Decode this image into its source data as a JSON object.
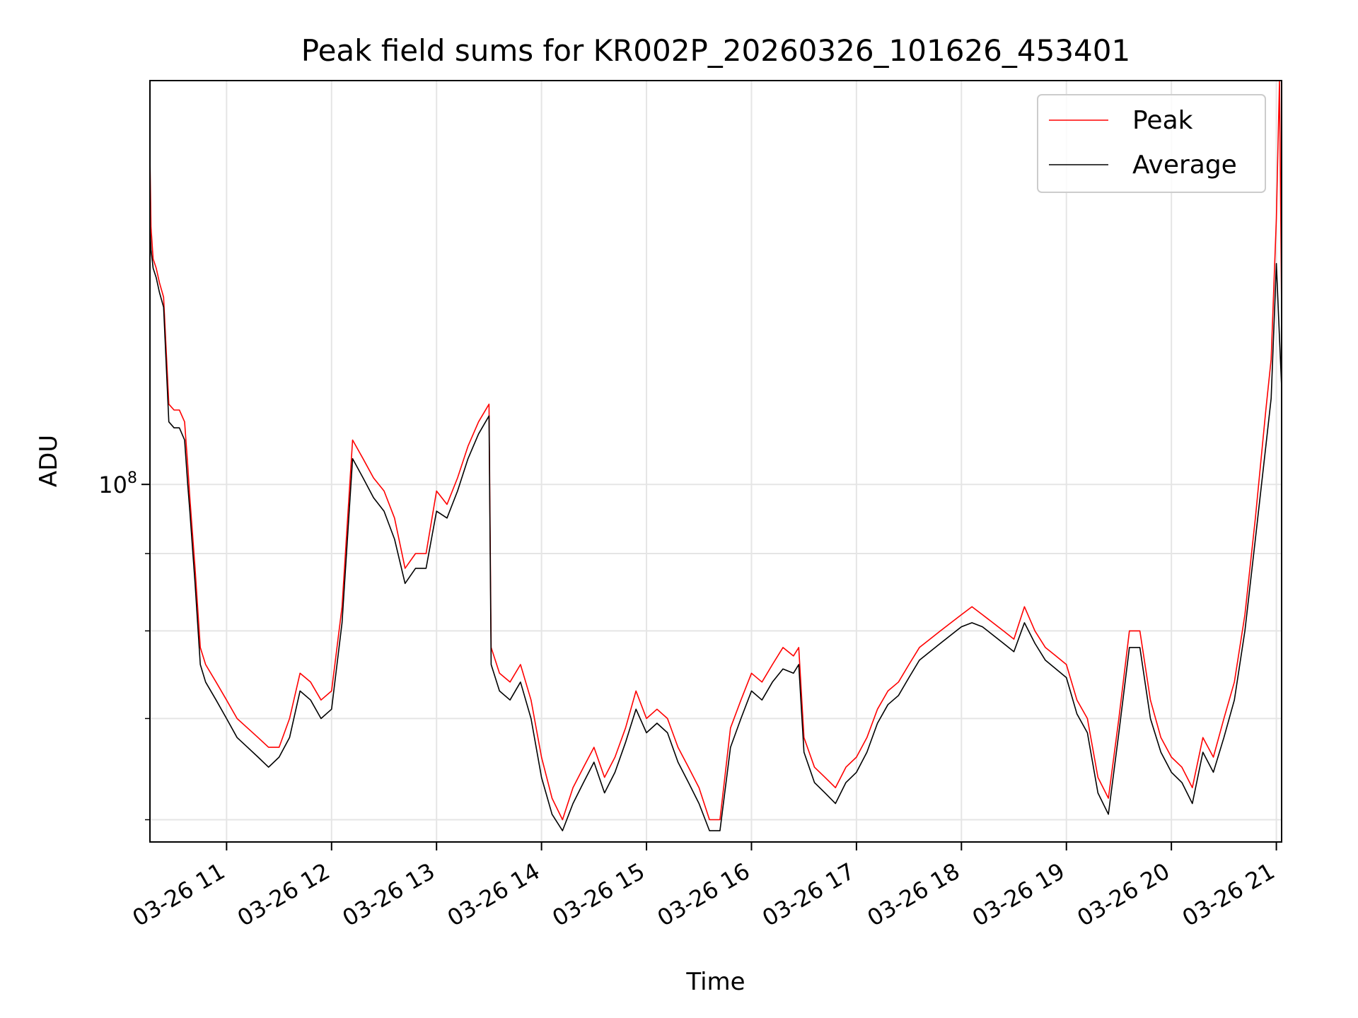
{
  "chart_data": {
    "type": "line",
    "title": "Peak field sums for KR002P_20260326_101626_453401",
    "xlabel": "Time",
    "ylabel": "ADU",
    "yscale": "log",
    "ylim": [
      58000000,
      185000000
    ],
    "xlim": [
      10.27,
      21.05
    ],
    "x_unit": "hour of 2026-03-26",
    "x_ticks": [
      {
        "x": 11,
        "label": "03-26 11"
      },
      {
        "x": 12,
        "label": "03-26 12"
      },
      {
        "x": 13,
        "label": "03-26 13"
      },
      {
        "x": 14,
        "label": "03-26 14"
      },
      {
        "x": 15,
        "label": "03-26 15"
      },
      {
        "x": 16,
        "label": "03-26 16"
      },
      {
        "x": 17,
        "label": "03-26 17"
      },
      {
        "x": 18,
        "label": "03-26 18"
      },
      {
        "x": 19,
        "label": "03-26 19"
      },
      {
        "x": 20,
        "label": "03-26 20"
      },
      {
        "x": 21,
        "label": "03-26 21"
      }
    ],
    "y_major_ticks": [
      {
        "value": 100000000,
        "base": "10",
        "exp": "8"
      }
    ],
    "y_minor_ticks": [
      60000000,
      70000000,
      80000000,
      90000000
    ],
    "grid": true,
    "legend": {
      "position": "top-right",
      "entries": [
        "Peak",
        "Average"
      ]
    },
    "series": [
      {
        "name": "Peak",
        "color": "#ff0000",
        "x": [
          10.27,
          10.28,
          10.3,
          10.33,
          10.36,
          10.4,
          10.45,
          10.5,
          10.55,
          10.6,
          10.63,
          10.65,
          10.7,
          10.75,
          10.8,
          10.9,
          11.0,
          11.1,
          11.2,
          11.3,
          11.4,
          11.5,
          11.6,
          11.7,
          11.8,
          11.9,
          12.0,
          12.1,
          12.2,
          12.3,
          12.4,
          12.5,
          12.6,
          12.7,
          12.8,
          12.9,
          13.0,
          13.1,
          13.2,
          13.3,
          13.4,
          13.5,
          13.52,
          13.6,
          13.7,
          13.8,
          13.9,
          14.0,
          14.1,
          14.2,
          14.3,
          14.4,
          14.5,
          14.6,
          14.7,
          14.8,
          14.9,
          15.0,
          15.1,
          15.2,
          15.3,
          15.4,
          15.5,
          15.6,
          15.7,
          15.8,
          15.9,
          16.0,
          16.1,
          16.2,
          16.3,
          16.4,
          16.45,
          16.5,
          16.6,
          16.7,
          16.8,
          16.9,
          17.0,
          17.1,
          17.2,
          17.3,
          17.4,
          17.5,
          17.6,
          17.7,
          17.8,
          17.9,
          18.0,
          18.1,
          18.2,
          18.3,
          18.4,
          18.5,
          18.6,
          18.7,
          18.8,
          18.9,
          19.0,
          19.1,
          19.2,
          19.3,
          19.4,
          19.5,
          19.6,
          19.7,
          19.8,
          19.9,
          20.0,
          20.1,
          20.2,
          20.3,
          20.4,
          20.5,
          20.6,
          20.7,
          20.8,
          20.9,
          20.95,
          21.0,
          21.03,
          21.05
        ],
        "y": [
          165000000,
          148000000,
          141000000,
          139000000,
          136000000,
          133000000,
          113000000,
          112000000,
          112000000,
          110000000,
          103000000,
          98000000,
          88000000,
          78000000,
          76000000,
          74000000,
          72000000,
          70000000,
          69000000,
          68000000,
          67000000,
          67000000,
          70000000,
          75000000,
          74000000,
          72000000,
          73000000,
          83000000,
          107000000,
          104000000,
          101000000,
          99000000,
          95000000,
          88000000,
          90000000,
          90000000,
          99000000,
          97000000,
          101000000,
          106000000,
          110000000,
          113000000,
          78000000,
          75000000,
          74000000,
          76000000,
          72000000,
          66000000,
          62000000,
          60000000,
          63000000,
          65000000,
          67000000,
          64000000,
          66000000,
          69000000,
          73000000,
          70000000,
          71000000,
          70000000,
          67000000,
          65000000,
          63000000,
          60000000,
          60000000,
          69000000,
          72000000,
          75000000,
          74000000,
          76000000,
          78000000,
          77000000,
          78000000,
          68000000,
          65000000,
          64000000,
          63000000,
          65000000,
          66000000,
          68000000,
          71000000,
          73000000,
          74000000,
          76000000,
          78000000,
          79000000,
          80000000,
          81000000,
          82000000,
          83000000,
          82000000,
          81000000,
          80000000,
          79000000,
          83000000,
          80000000,
          78000000,
          77000000,
          76000000,
          72000000,
          70000000,
          64000000,
          62000000,
          70000000,
          80000000,
          80000000,
          72000000,
          68000000,
          66000000,
          65000000,
          63000000,
          68000000,
          66000000,
          70000000,
          74000000,
          82000000,
          95000000,
          112000000,
          121000000,
          150000000,
          185000000,
          130000000
        ]
      },
      {
        "name": "Average",
        "color": "#000000",
        "x": [
          10.27,
          10.28,
          10.3,
          10.33,
          10.36,
          10.4,
          10.45,
          10.5,
          10.55,
          10.6,
          10.63,
          10.65,
          10.7,
          10.75,
          10.8,
          10.9,
          11.0,
          11.1,
          11.2,
          11.3,
          11.4,
          11.5,
          11.6,
          11.7,
          11.8,
          11.9,
          12.0,
          12.1,
          12.2,
          12.3,
          12.4,
          12.5,
          12.6,
          12.7,
          12.8,
          12.9,
          13.0,
          13.1,
          13.2,
          13.3,
          13.4,
          13.5,
          13.52,
          13.6,
          13.7,
          13.8,
          13.9,
          14.0,
          14.1,
          14.2,
          14.3,
          14.4,
          14.5,
          14.6,
          14.7,
          14.8,
          14.9,
          15.0,
          15.1,
          15.2,
          15.3,
          15.4,
          15.5,
          15.6,
          15.7,
          15.8,
          15.9,
          16.0,
          16.1,
          16.2,
          16.3,
          16.4,
          16.45,
          16.5,
          16.6,
          16.7,
          16.8,
          16.9,
          17.0,
          17.1,
          17.2,
          17.3,
          17.4,
          17.5,
          17.6,
          17.7,
          17.8,
          17.9,
          18.0,
          18.1,
          18.2,
          18.3,
          18.4,
          18.5,
          18.6,
          18.7,
          18.8,
          18.9,
          19.0,
          19.1,
          19.2,
          19.3,
          19.4,
          19.5,
          19.6,
          19.7,
          19.8,
          19.9,
          20.0,
          20.1,
          20.2,
          20.3,
          20.4,
          20.5,
          20.6,
          20.7,
          20.8,
          20.9,
          20.95,
          21.0,
          21.03,
          21.05
        ],
        "y": [
          148000000,
          143000000,
          139000000,
          137000000,
          134000000,
          131000000,
          110000000,
          109000000,
          109000000,
          107000000,
          100000000,
          96000000,
          86000000,
          76000000,
          74000000,
          72000000,
          70000000,
          68000000,
          67000000,
          66000000,
          65000000,
          66000000,
          68000000,
          73000000,
          72000000,
          70000000,
          71000000,
          81000000,
          104000000,
          101000000,
          98000000,
          96000000,
          92000000,
          86000000,
          88000000,
          88000000,
          96000000,
          95000000,
          99000000,
          104000000,
          108000000,
          111000000,
          76000000,
          73000000,
          72000000,
          74000000,
          70000000,
          64000000,
          60500000,
          59000000,
          61500000,
          63500000,
          65500000,
          62500000,
          64500000,
          67500000,
          71000000,
          68500000,
          69500000,
          68500000,
          65500000,
          63500000,
          61500000,
          59000000,
          59000000,
          67000000,
          70000000,
          73000000,
          72000000,
          74000000,
          75500000,
          75000000,
          76000000,
          66500000,
          63500000,
          62500000,
          61500000,
          63500000,
          64500000,
          66500000,
          69500000,
          71500000,
          72500000,
          74500000,
          76500000,
          77500000,
          78500000,
          79500000,
          80500000,
          81000000,
          80500000,
          79500000,
          78500000,
          77500000,
          81000000,
          78500000,
          76500000,
          75500000,
          74500000,
          70500000,
          68500000,
          62500000,
          60500000,
          68500000,
          78000000,
          78000000,
          70000000,
          66500000,
          64500000,
          63500000,
          61500000,
          66500000,
          64500000,
          68000000,
          72000000,
          80000000,
          92000000,
          106000000,
          114000000,
          140000000,
          125000000,
          116000000
        ]
      }
    ]
  }
}
